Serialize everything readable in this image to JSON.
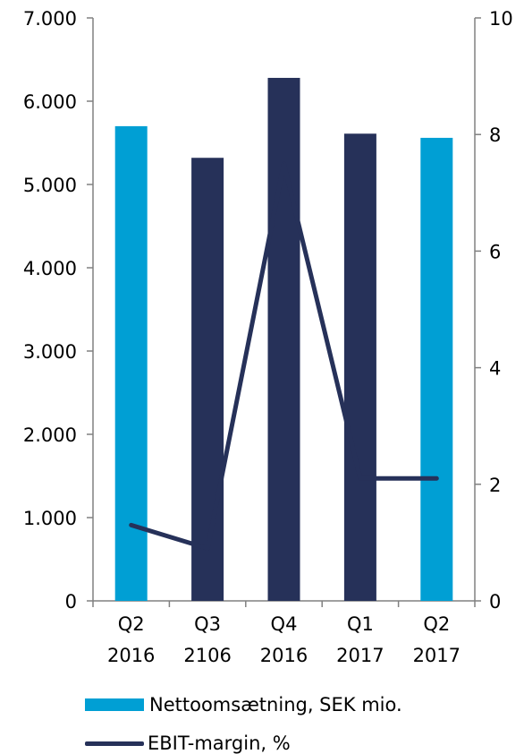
{
  "chart_data": {
    "type": "bar",
    "categories": [
      [
        "Q2",
        "2016"
      ],
      [
        "Q3",
        "2106"
      ],
      [
        "Q4",
        "2016"
      ],
      [
        "Q1",
        "2017"
      ],
      [
        "Q2",
        "2017"
      ]
    ],
    "series": [
      {
        "name": "Nettoomsætning, SEK mio.",
        "type": "bar",
        "axis": "left",
        "values": [
          5700,
          5320,
          6280,
          5610,
          5560
        ],
        "bar_colors": [
          "#009fd4",
          "#263159",
          "#263159",
          "#263159",
          "#009fd4"
        ]
      },
      {
        "name": "EBIT-margin, %",
        "type": "line",
        "axis": "right",
        "values": [
          1.3,
          0.9,
          7.5,
          2.1,
          2.1
        ],
        "color": "#263159"
      }
    ],
    "y_left": {
      "min": 0,
      "max": 7000,
      "ticks": [
        "0",
        "1.000",
        "2.000",
        "3.000",
        "4.000",
        "5.000",
        "6.000",
        "7.000"
      ]
    },
    "y_right": {
      "min": 0,
      "max": 10,
      "ticks": [
        "0",
        "2",
        "4",
        "6",
        "8",
        "10"
      ]
    },
    "legend_placement": "bottom",
    "grid": false,
    "colors": {
      "light_blue": "#009fd4",
      "dark_navy": "#263159",
      "axis": "#808080"
    }
  },
  "legend": {
    "bar_label": "Nettoomsætning, SEK mio.",
    "line_label": "EBIT-margin, %"
  }
}
